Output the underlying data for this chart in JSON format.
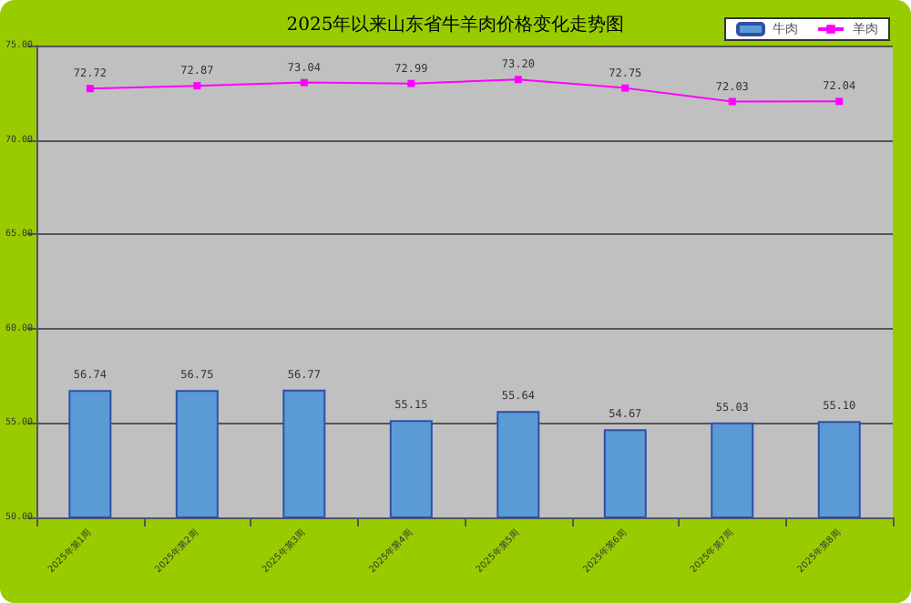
{
  "chart_data": {
    "type": "bar",
    "title": "2025年以来山东省牛羊肉价格变化走势图",
    "categories": [
      "2025年第1周",
      "2025年第2周",
      "2025年第3周",
      "2025年第4周",
      "2025年第5周",
      "2025年第6周",
      "2025年第7周",
      "2025年第8周"
    ],
    "series": [
      {
        "name": "牛肉",
        "color": "#5b9bd5",
        "values": [
          56.74,
          56.75,
          56.77,
          55.15,
          55.64,
          54.67,
          55.03,
          55.1
        ],
        "value_labels": [
          "56.74",
          "56.75",
          "56.77",
          "55.15",
          "55.64",
          "54.67",
          "55.03",
          "55.10"
        ]
      },
      {
        "name": "羊肉",
        "type": "line",
        "color": "#ff00ff",
        "marker": "square",
        "values": [
          72.72,
          72.87,
          73.04,
          72.99,
          73.2,
          72.75,
          72.03,
          72.04
        ],
        "value_labels": [
          "72.72",
          "72.87",
          "73.04",
          "72.99",
          "73.20",
          "72.75",
          "72.03",
          "72.04"
        ]
      }
    ],
    "ylim": [
      50,
      75
    ],
    "yticks": [
      {
        "value": 50,
        "label": "50.00"
      },
      {
        "value": 55,
        "label": "55.00"
      },
      {
        "value": 60,
        "label": "60.00"
      },
      {
        "value": 65,
        "label": "65.00"
      },
      {
        "value": 70,
        "label": "70.00"
      },
      {
        "value": 75,
        "label": "75.00"
      }
    ],
    "grid": "y",
    "legend": "top right"
  }
}
